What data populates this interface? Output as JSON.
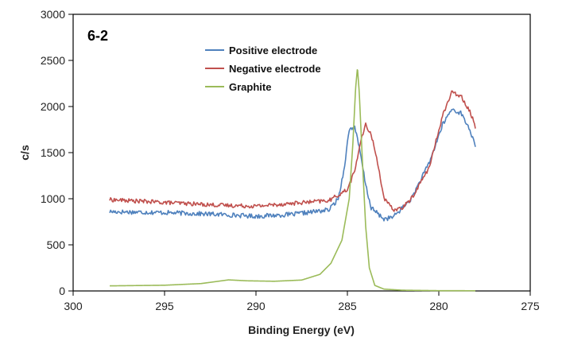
{
  "chart_data": {
    "type": "line",
    "panel_label": "6-2",
    "xlabel": "Binding Energy (eV)",
    "ylabel": "c/s",
    "xlim": [
      300,
      275
    ],
    "x_reversed": true,
    "ylim": [
      0,
      3000
    ],
    "x_ticks": [
      "300",
      "295",
      "290",
      "285",
      "280",
      "275"
    ],
    "y_ticks": [
      "0",
      "500",
      "1000",
      "1500",
      "2000",
      "2500",
      "3000"
    ],
    "grid": false,
    "legend_position": "top-center",
    "series": [
      {
        "name": "Positive electrode",
        "color": "#4f81bd",
        "noise": 45,
        "points": [
          [
            298,
            860
          ],
          [
            295,
            850
          ],
          [
            292,
            830
          ],
          [
            290,
            810
          ],
          [
            288,
            830
          ],
          [
            286,
            880
          ],
          [
            285.5,
            1000
          ],
          [
            285.2,
            1300
          ],
          [
            284.9,
            1750
          ],
          [
            284.6,
            1780
          ],
          [
            284.3,
            1500
          ],
          [
            284.0,
            1150
          ],
          [
            283.7,
            900
          ],
          [
            283.0,
            780
          ],
          [
            282.5,
            800
          ],
          [
            281.5,
            1000
          ],
          [
            280.5,
            1400
          ],
          [
            279.8,
            1800
          ],
          [
            279.3,
            1970
          ],
          [
            278.8,
            1930
          ],
          [
            278.3,
            1750
          ],
          [
            278,
            1560
          ]
        ]
      },
      {
        "name": "Negative electrode",
        "color": "#c0504d",
        "noise": 40,
        "points": [
          [
            298,
            990
          ],
          [
            295,
            960
          ],
          [
            292,
            930
          ],
          [
            290,
            920
          ],
          [
            288,
            950
          ],
          [
            286,
            980
          ],
          [
            285,
            1100
          ],
          [
            284.6,
            1300
          ],
          [
            284.3,
            1600
          ],
          [
            284,
            1800
          ],
          [
            283.7,
            1700
          ],
          [
            283.3,
            1350
          ],
          [
            283.0,
            1000
          ],
          [
            282.5,
            880
          ],
          [
            282,
            900
          ],
          [
            281.5,
            1000
          ],
          [
            280.5,
            1350
          ],
          [
            279.8,
            1900
          ],
          [
            279.3,
            2150
          ],
          [
            278.8,
            2120
          ],
          [
            278.3,
            1950
          ],
          [
            278,
            1780
          ]
        ]
      },
      {
        "name": "Graphite",
        "color": "#9bbb59",
        "noise": 0,
        "points": [
          [
            298,
            55
          ],
          [
            295,
            62
          ],
          [
            293,
            80
          ],
          [
            291.5,
            120
          ],
          [
            290.5,
            110
          ],
          [
            289,
            105
          ],
          [
            287.5,
            118
          ],
          [
            286.5,
            180
          ],
          [
            285.9,
            300
          ],
          [
            285.3,
            550
          ],
          [
            284.9,
            1000
          ],
          [
            284.7,
            1600
          ],
          [
            284.55,
            2200
          ],
          [
            284.45,
            2420
          ],
          [
            284.35,
            2150
          ],
          [
            284.2,
            1500
          ],
          [
            284.0,
            700
          ],
          [
            283.8,
            250
          ],
          [
            283.5,
            60
          ],
          [
            283,
            20
          ],
          [
            282,
            8
          ],
          [
            280,
            3
          ],
          [
            278,
            2
          ]
        ]
      }
    ]
  }
}
